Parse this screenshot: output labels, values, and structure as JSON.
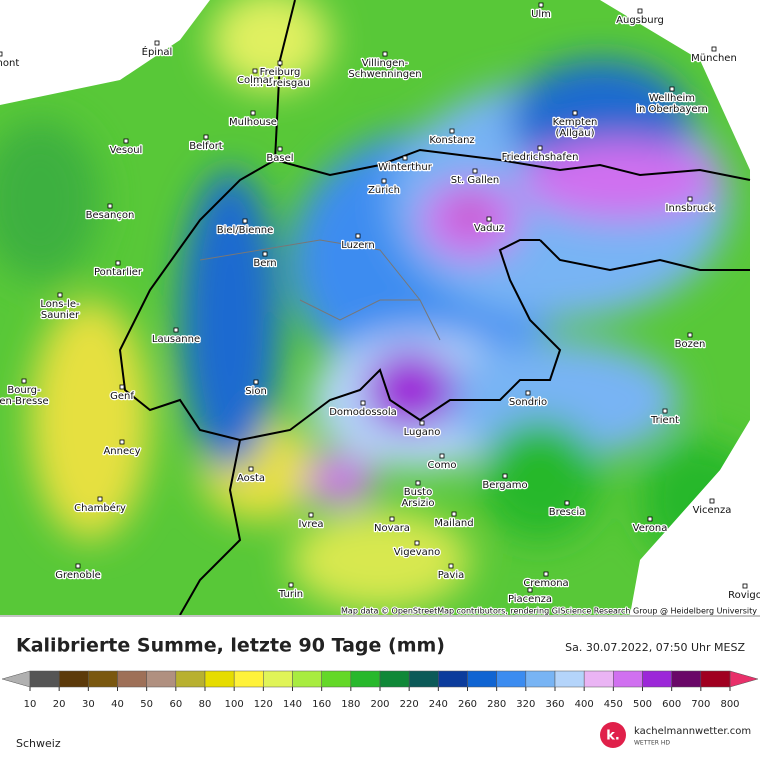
{
  "title": "Kalibrierte Summe, letzte 90 Tage (mm)",
  "timestamp": "Sa. 30.07.2022, 07:50 Uhr MESZ",
  "region": "Schweiz",
  "attribution": "Map data © OpenStreetMap contributors, rendering GIScience Research Group @ Heidelberg University",
  "brand": {
    "name": "kachelmannwetter.com",
    "tagline": "WETTER HD",
    "logo": "k."
  },
  "legend": {
    "ticks": [
      10,
      20,
      30,
      40,
      50,
      60,
      80,
      100,
      120,
      140,
      160,
      180,
      200,
      220,
      240,
      260,
      280,
      320,
      360,
      400,
      450,
      500,
      600,
      700,
      800
    ],
    "below_color": "#b0b0b0",
    "above_color": "#e8306a",
    "colors": [
      "#555555",
      "#5c3a0a",
      "#7a5810",
      "#9e7058",
      "#b09080",
      "#b8b030",
      "#e6dc00",
      "#fff23a",
      "#e0f458",
      "#a8ec40",
      "#64d828",
      "#28b82c",
      "#108838",
      "#0c5a58",
      "#0c3c9c",
      "#1064d2",
      "#3c8cf0",
      "#78b4f4",
      "#b4d4fa",
      "#eab4f4",
      "#d070f0",
      "#9c28d8",
      "#6a0868",
      "#a00020"
    ]
  },
  "cities": [
    [
      "Ulm"
    ],
    [
      "Augsburg"
    ],
    [
      "Épinal"
    ],
    [
      "aumont"
    ],
    [
      "Villingen-",
      "Schwenningen"
    ],
    [
      "Freiburg",
      "im Breisgau"
    ],
    [
      "Colmar"
    ],
    [
      "München"
    ],
    [
      "Wellheim",
      "in Oberbayern"
    ],
    [
      "Mulhouse"
    ],
    [
      "Kempten",
      "(Allgäu)"
    ],
    [
      "Konstanz"
    ],
    [
      "Vesoul"
    ],
    [
      "Belfort"
    ],
    [
      "Basel"
    ],
    [
      "Friedrichshafen"
    ],
    [
      "Winterthur"
    ],
    [
      "Zürich"
    ],
    [
      "St. Gallen"
    ],
    [
      "Besançon"
    ],
    [
      "Biel/Bienne"
    ],
    [
      "Vaduz"
    ],
    [
      "Innsbruck"
    ],
    [
      "Luzern"
    ],
    [
      "Pontarlier"
    ],
    [
      "Bern"
    ],
    [
      "Lons-le-",
      "Saunier"
    ],
    [
      "Lausanne"
    ],
    [
      "Bozen"
    ],
    [
      "Bourg-",
      "en-Bresse"
    ],
    [
      "Genf"
    ],
    [
      "Sion"
    ],
    [
      "Domodossola"
    ],
    [
      "Sondrio"
    ],
    [
      "Trient"
    ],
    [
      "Lugano"
    ],
    [
      "Annecy"
    ],
    [
      "Como"
    ],
    [
      "Aosta"
    ],
    [
      "Bergamo"
    ],
    [
      "Busto",
      "Arsizio"
    ],
    [
      "Chambéry"
    ],
    [
      "Brescia"
    ],
    [
      "Ivrea"
    ],
    [
      "Novara"
    ],
    [
      "Mailand"
    ],
    [
      "Verona"
    ],
    [
      "Vicenza"
    ],
    [
      "Vigevano"
    ],
    [
      "Grenoble"
    ],
    [
      "Pavia"
    ],
    [
      "Cremona"
    ],
    [
      "Turin"
    ],
    [
      "Piacenza"
    ],
    [
      "Rovigo"
    ]
  ]
}
